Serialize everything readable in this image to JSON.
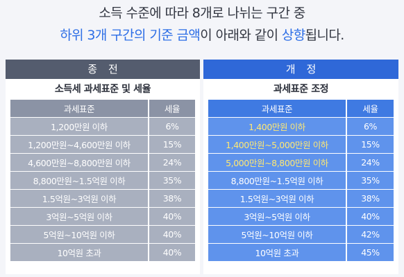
{
  "headline": {
    "line1": "소득 수준에 따라 8개로 나뉘는 구간 중",
    "line2_highlight": "하위 3개 구간의 기준 금액",
    "line2_mid": "이 아래와 같이 ",
    "line2_highlight2": "상향",
    "line2_end": "됩니다."
  },
  "old": {
    "band": "종전",
    "subtitle": "소득세 과세표준 및 세율",
    "header": {
      "base": "과세표준",
      "rate": "세율"
    },
    "rows": [
      {
        "base": "1,200만원 이하",
        "rate": "6%"
      },
      {
        "base": "1,200만원~4,600만원 이하",
        "rate": "15%"
      },
      {
        "base": "4,600만원~8,800만원 이하",
        "rate": "24%"
      },
      {
        "base": "8,800만원~1.5억원 이하",
        "rate": "35%"
      },
      {
        "base": "1.5억원~3억원 이하",
        "rate": "38%"
      },
      {
        "base": "3억원~5억원 이하",
        "rate": "40%"
      },
      {
        "base": "5억원~10억원 이하",
        "rate": "40%"
      },
      {
        "base": "10억원 초과",
        "rate": "40%"
      }
    ]
  },
  "new": {
    "band": "개정",
    "subtitle": "과세표준 조정",
    "header": {
      "base": "과세표준",
      "rate": "세율"
    },
    "rows": [
      {
        "base": "1,400만원 이하",
        "rate": "6%"
      },
      {
        "base": "1,400만원~5,000만원 이하",
        "rate": "15%"
      },
      {
        "base": "5,000만원~8,800만원 이하",
        "rate": "24%"
      },
      {
        "base": "8,800만원~1.5억원 이하",
        "rate": "35%"
      },
      {
        "base": "1.5억원~3억원 이하",
        "rate": "38%"
      },
      {
        "base": "3억원~5억원 이하",
        "rate": "40%"
      },
      {
        "base": "5억원~10억원 이하",
        "rate": "42%"
      },
      {
        "base": "10억원 초과",
        "rate": "45%"
      }
    ]
  },
  "colors": {
    "highlight_blue": "#2d6ee6",
    "changed_value_yellow": "#ffe873"
  }
}
